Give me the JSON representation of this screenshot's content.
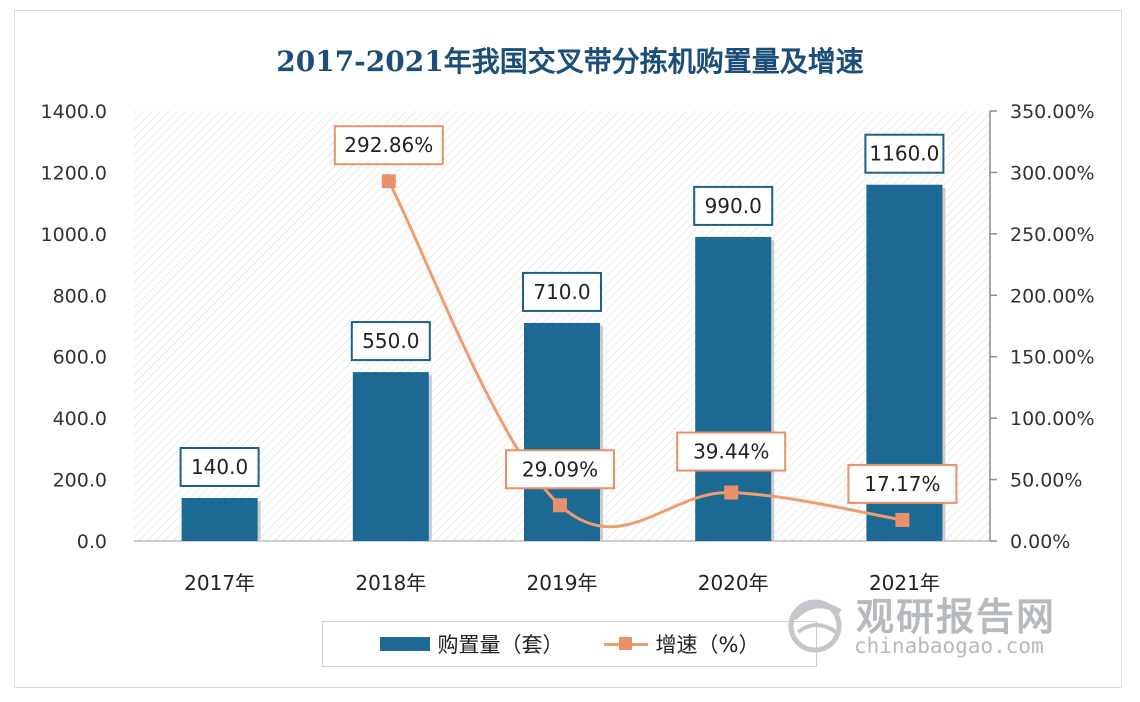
{
  "chart_data": {
    "type": "bar+line",
    "title": "2017-2021年我国交叉带分拣机购置量及增速",
    "categories": [
      "2017年",
      "2018年",
      "2019年",
      "2020年",
      "2021年"
    ],
    "series": [
      {
        "name": "购置量（套）",
        "type": "bar",
        "axis": "left",
        "values": [
          140.0,
          550.0,
          710.0,
          990.0,
          1160.0
        ],
        "labels": [
          "140.0",
          "550.0",
          "710.0",
          "990.0",
          "1160.0"
        ]
      },
      {
        "name": "增速（%）",
        "type": "line",
        "axis": "right",
        "values": [
          null,
          292.86,
          29.09,
          39.44,
          17.17
        ],
        "labels": [
          "",
          "292.86%",
          "29.09%",
          "39.44%",
          "17.17%"
        ]
      }
    ],
    "left_axis": {
      "min": 0,
      "max": 1400,
      "step": 200,
      "ticks": [
        "0.0",
        "200.0",
        "400.0",
        "600.0",
        "800.0",
        "1000.0",
        "1200.0",
        "1400.0"
      ]
    },
    "right_axis": {
      "min": 0,
      "max": 350,
      "step": 50,
      "ticks": [
        "0.00%",
        "50.00%",
        "100.00%",
        "150.00%",
        "200.00%",
        "250.00%",
        "300.00%",
        "350.00%"
      ]
    },
    "legend_position": "bottom",
    "grid": false
  },
  "colors": {
    "bar": "#1c6a93",
    "line": "#ef9d6c",
    "marker": "#e9926a",
    "title": "#1b4f7a",
    "label_border_bar": "#1c5f88",
    "label_border_line": "#e8906a"
  },
  "watermark": {
    "cn": "观研报告网",
    "en": "chinabaogao.com",
    "icon": "globe-logo-icon"
  }
}
